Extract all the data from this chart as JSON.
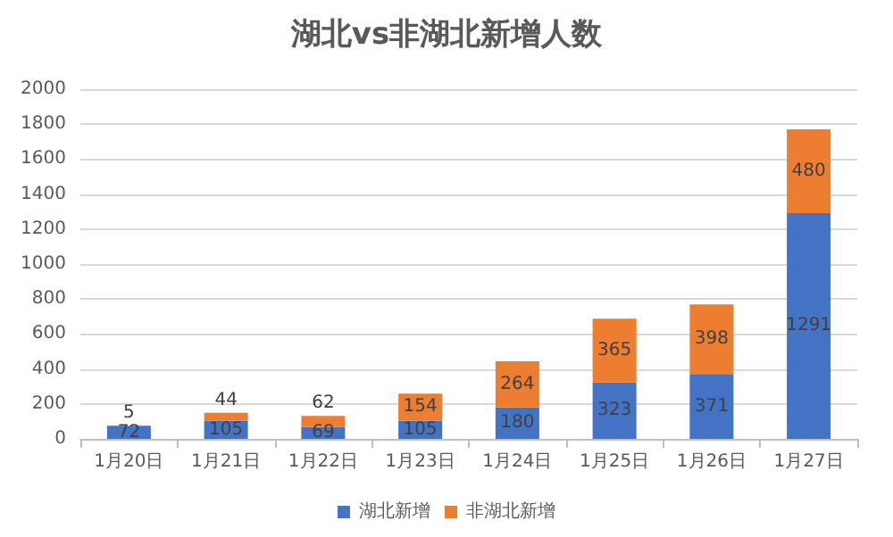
{
  "chart_data": {
    "type": "bar",
    "title": "湖北vs非湖北新增人数",
    "categories": [
      "1月20日",
      "1月21日",
      "1月22日",
      "1月23日",
      "1月24日",
      "1月25日",
      "1月26日",
      "1月27日"
    ],
    "series": [
      {
        "name": "湖北新增",
        "color": "#4472c4",
        "values": [
          72,
          105,
          69,
          105,
          180,
          323,
          371,
          1291
        ]
      },
      {
        "name": "非湖北新增",
        "color": "#ed7d31",
        "values": [
          5,
          44,
          62,
          154,
          264,
          365,
          398,
          480
        ]
      }
    ],
    "stacked": true,
    "ylim": [
      0,
      2000
    ],
    "yticks": [
      0,
      200,
      400,
      600,
      800,
      1000,
      1200,
      1400,
      1600,
      1800,
      2000
    ],
    "grid": "y",
    "legend": "bottom",
    "data_labels": true
  }
}
